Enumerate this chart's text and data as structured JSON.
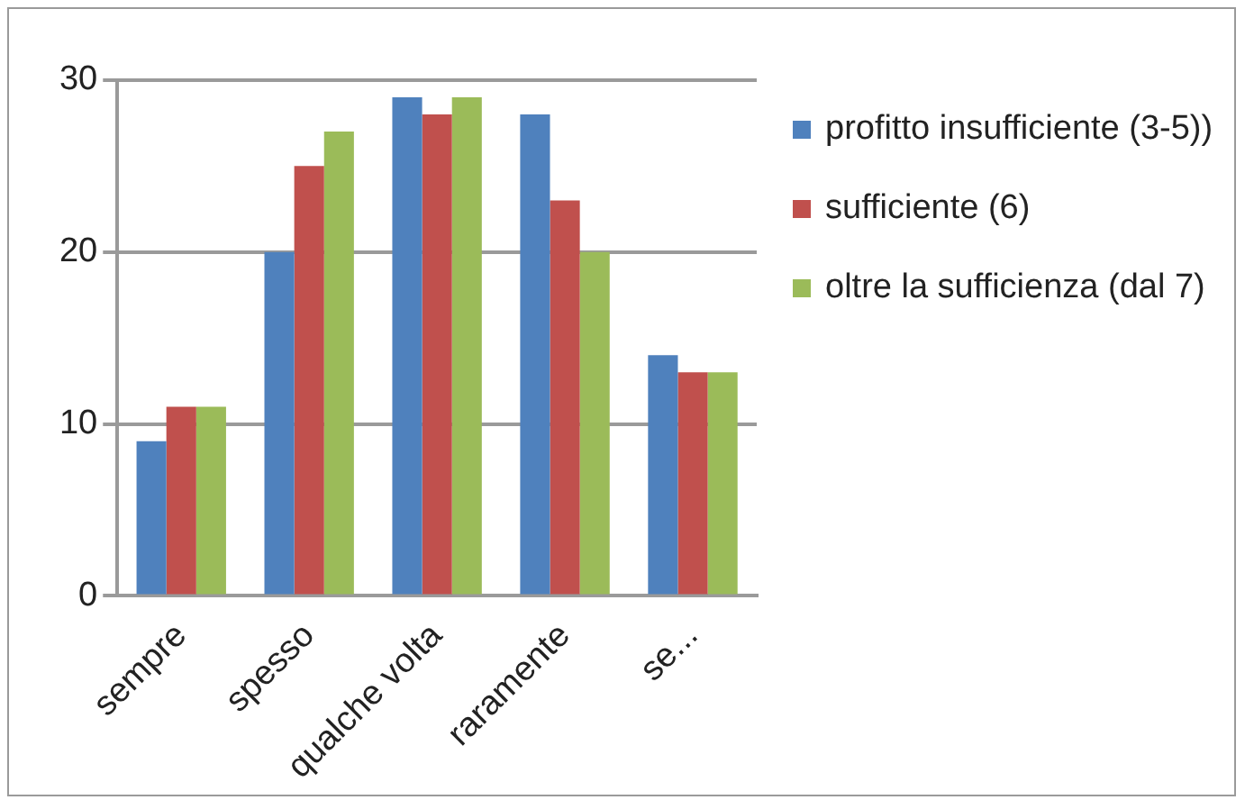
{
  "chart_data": {
    "type": "bar",
    "categories": [
      "sempre",
      "spesso",
      "qualche volta",
      "raramente",
      "se..."
    ],
    "series": [
      {
        "name": "profitto insufficiente (3-5))",
        "color": "#4f81bd",
        "values": [
          9,
          20,
          29,
          28,
          14
        ]
      },
      {
        "name": "sufficiente (6)",
        "color": "#c0504d",
        "values": [
          11,
          25,
          28,
          23,
          13
        ]
      },
      {
        "name": "oltre la sufficienza (dal 7)",
        "color": "#9bbb59",
        "values": [
          11,
          27,
          29,
          20,
          13
        ]
      }
    ],
    "ylim": [
      0,
      30
    ],
    "yticks": [
      0,
      10,
      20,
      30
    ],
    "grid": "y",
    "legend": "right"
  }
}
